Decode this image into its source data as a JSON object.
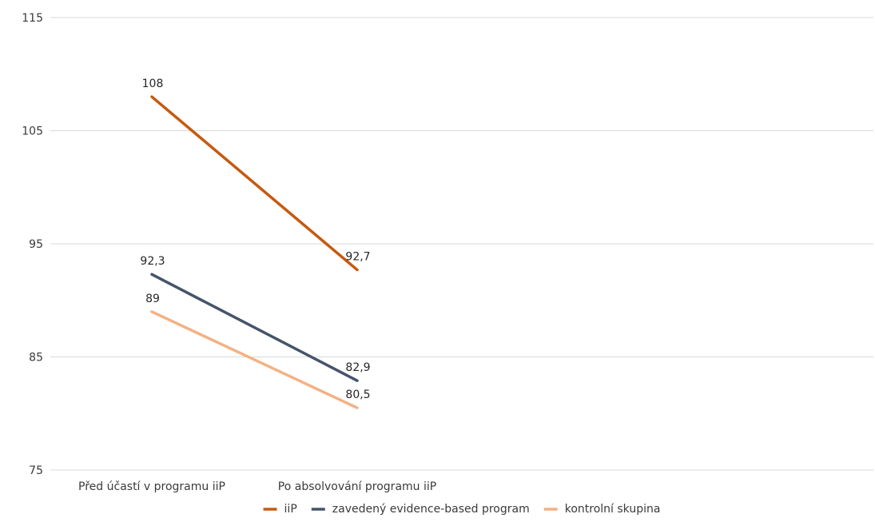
{
  "chart_data": {
    "type": "line",
    "title": "",
    "xlabel": "",
    "ylabel": "",
    "categories": [
      "Před účastí v programu iiP",
      "Po absolvování programu iiP"
    ],
    "y_ticks": [
      75,
      85,
      95,
      105,
      115
    ],
    "ylim": [
      75,
      115
    ],
    "grid": true,
    "legend_position": "bottom",
    "series": [
      {
        "name": "iiP",
        "values": [
          108,
          92.7
        ],
        "labels": [
          "108",
          "92,7"
        ],
        "color": "#c55a11"
      },
      {
        "name": "zavedený evidence-based program",
        "values": [
          92.3,
          82.9
        ],
        "labels": [
          "92,3",
          "82,9"
        ],
        "color": "#44546a"
      },
      {
        "name": "kontrolní skupina",
        "values": [
          89,
          80.5
        ],
        "labels": [
          "89",
          "80,5"
        ],
        "color": "#f4b183"
      }
    ]
  }
}
